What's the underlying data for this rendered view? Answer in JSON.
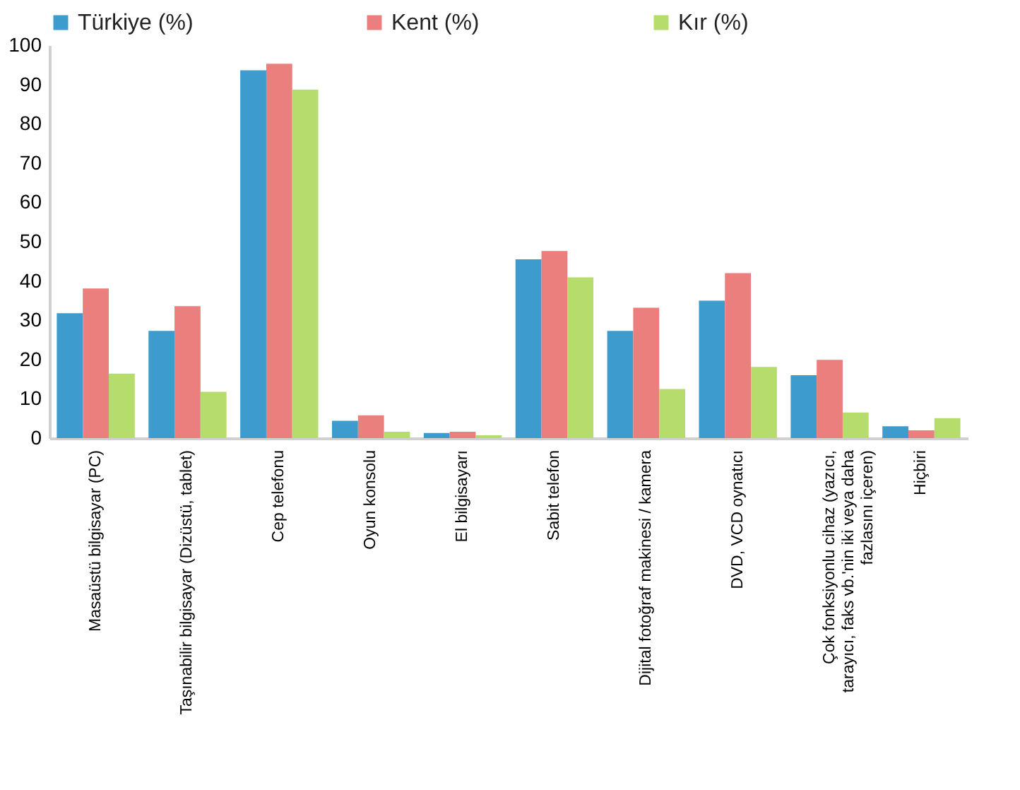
{
  "chart_data": {
    "type": "bar",
    "categories": [
      "Masaüstü bilgisayar (PC)",
      "Taşınabilir bilgisayar (Dizüstü, tablet)",
      "Cep telefonu",
      "Oyun konsolu",
      "El bilgisayarı",
      "Sabit telefon",
      "Dijital fotoğraf makinesi / kamera",
      "DVD, VCD oynatıcı",
      "Çok fonksiyonlu cihaz (yazıcı,\ntarayıcı, faks vb.'nin iki veya daha\nfazlasını içeren)",
      "Hiçbiri"
    ],
    "series": [
      {
        "name": "Türkiye (%)",
        "color": "#3d9bce",
        "values": [
          31.8,
          27.3,
          93.6,
          4.4,
          1.3,
          45.5,
          27.3,
          35.0,
          16.0,
          3.0
        ]
      },
      {
        "name": "Kent (%)",
        "color": "#eb7f7d",
        "values": [
          38.1,
          33.6,
          95.3,
          5.8,
          1.6,
          47.6,
          33.2,
          42.0,
          19.9,
          2.0
        ]
      },
      {
        "name": "Kır (%)",
        "color": "#b6dc6c",
        "values": [
          16.4,
          11.8,
          88.7,
          1.6,
          0.7,
          40.9,
          12.5,
          18.1,
          6.5,
          5.1
        ]
      }
    ],
    "ylim": [
      0,
      100
    ],
    "yticks": [
      0,
      10,
      20,
      30,
      40,
      50,
      60,
      70,
      80,
      90,
      100
    ],
    "grid": false,
    "legend": "top"
  }
}
